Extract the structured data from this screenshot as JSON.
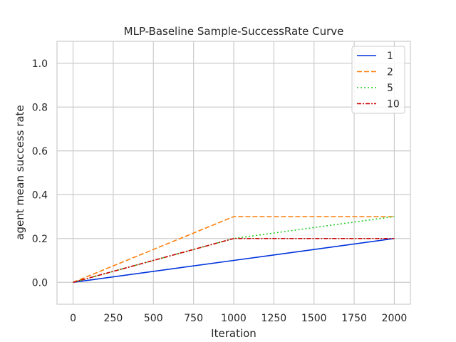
{
  "chart_data": {
    "type": "line",
    "title": "MLP-Baseline Sample-SuccessRate Curve",
    "xlabel": "Iteration",
    "ylabel": "agent mean success rate",
    "xlim": [
      -100,
      2100
    ],
    "ylim": [
      -0.1,
      1.1
    ],
    "xticks": [
      0,
      250,
      500,
      750,
      1000,
      1250,
      1500,
      1750,
      2000
    ],
    "yticks": [
      0.0,
      0.2,
      0.4,
      0.6,
      0.8,
      1.0
    ],
    "xtick_labels": [
      "0",
      "250",
      "500",
      "750",
      "1000",
      "1250",
      "1500",
      "1750",
      "2000"
    ],
    "ytick_labels": [
      "0.0",
      "0.2",
      "0.4",
      "0.6",
      "0.8",
      "1.0"
    ],
    "grid": true,
    "legend_position": "top-right",
    "x": [
      0,
      1000,
      2000
    ],
    "series": [
      {
        "name": "1",
        "values": [
          0.0,
          0.1,
          0.2
        ],
        "color": "#0033dd",
        "dash": "solid"
      },
      {
        "name": "2",
        "values": [
          0.0,
          0.3,
          0.3
        ],
        "color": "#ff7f0e",
        "dash": "dashed"
      },
      {
        "name": "5",
        "values": [
          0.0,
          0.2,
          0.3
        ],
        "color": "#22cc22",
        "dash": "dotted"
      },
      {
        "name": "10",
        "values": [
          0.0,
          0.2,
          0.2
        ],
        "color": "#cc0000",
        "dash": "dashdot"
      }
    ]
  }
}
